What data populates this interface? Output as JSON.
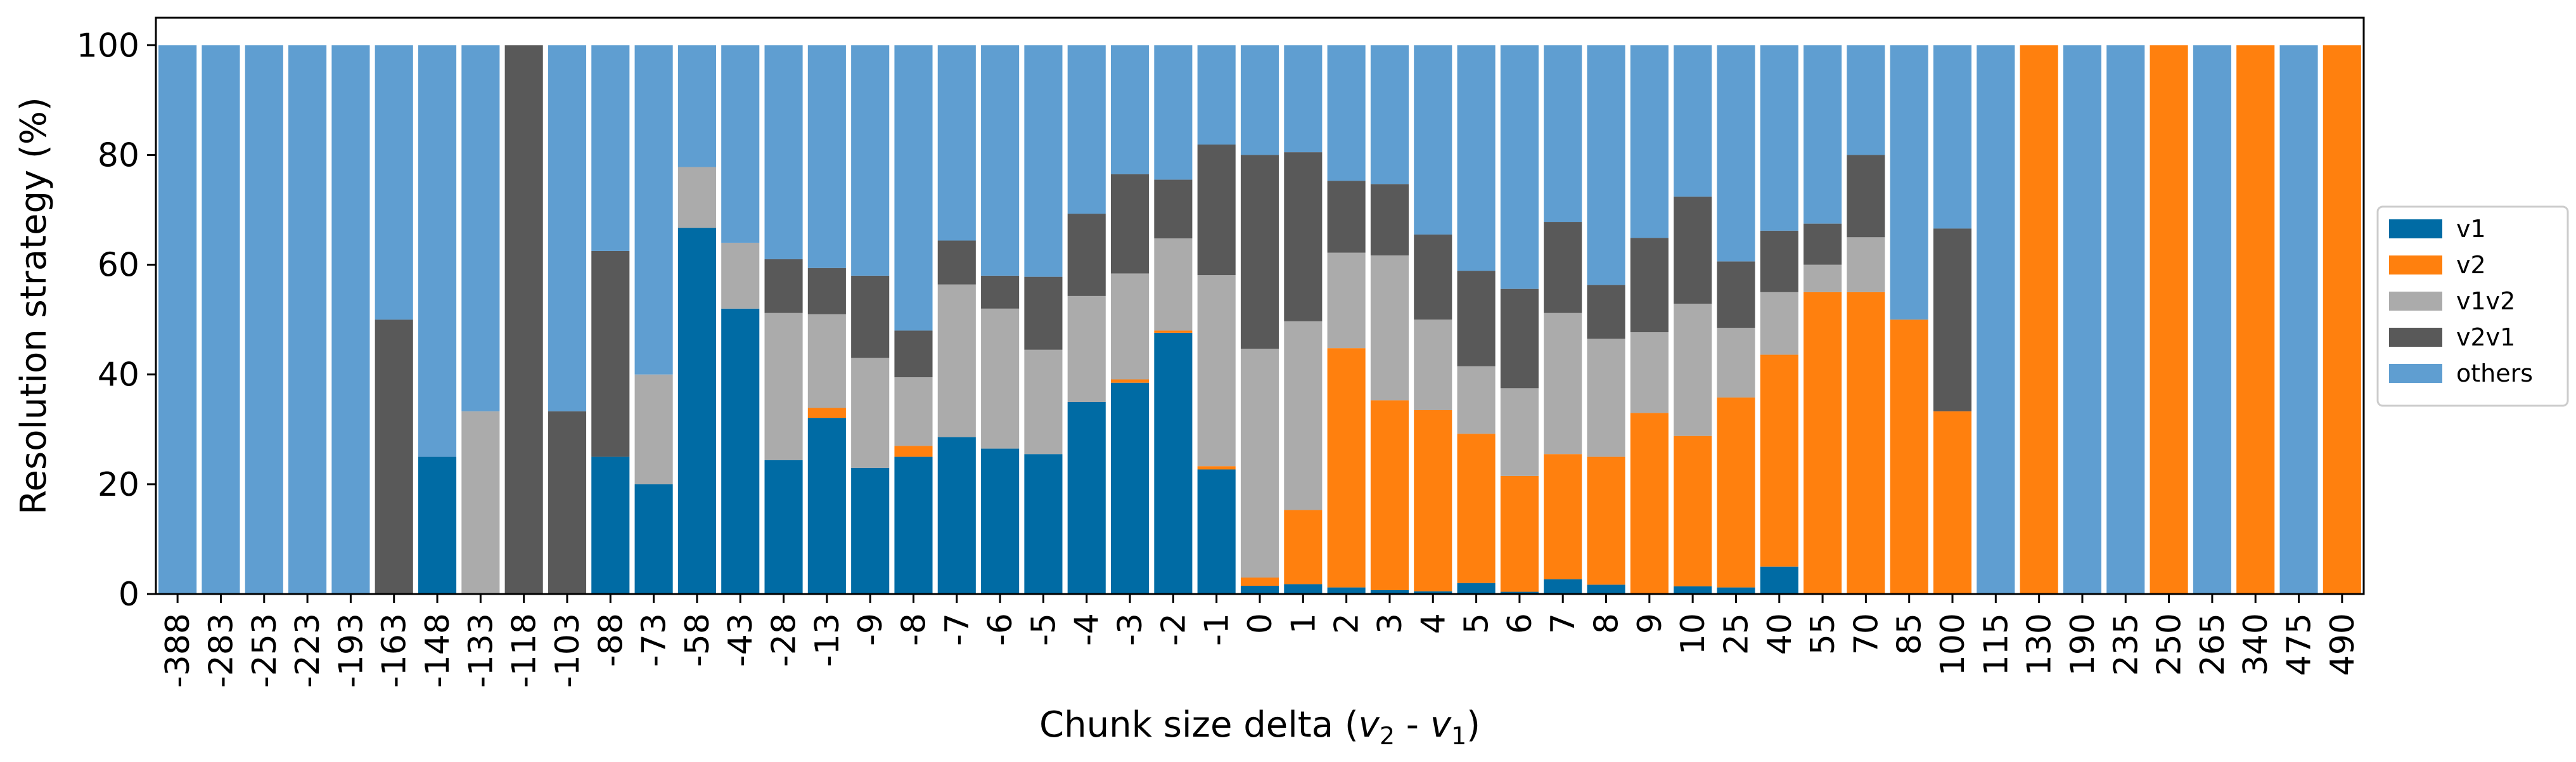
{
  "chart_data": {
    "type": "bar",
    "stacked": true,
    "title": "",
    "xlabel": "Chunk size delta (v₂ - v₁)",
    "xlabel_parts": [
      "Chunk size delta (",
      "v",
      "2",
      " - ",
      "v",
      "1",
      ")"
    ],
    "ylabel": "Resolution strategy (%)",
    "ylim": [
      0,
      105
    ],
    "yticks": [
      0,
      20,
      40,
      60,
      80,
      100
    ],
    "grid": false,
    "legend_position": "right",
    "categories": [
      "-388",
      "-283",
      "-253",
      "-223",
      "-193",
      "-163",
      "-148",
      "-133",
      "-118",
      "-103",
      "-88",
      "-73",
      "-58",
      "-43",
      "-28",
      "-13",
      "-9",
      "-8",
      "-7",
      "-6",
      "-5",
      "-4",
      "-3",
      "-2",
      "-1",
      "0",
      "1",
      "2",
      "3",
      "4",
      "5",
      "6",
      "7",
      "8",
      "9",
      "10",
      "25",
      "40",
      "55",
      "70",
      "85",
      "100",
      "115",
      "130",
      "190",
      "235",
      "250",
      "265",
      "340",
      "475",
      "490"
    ],
    "series": [
      {
        "name": "v1",
        "color": "#006ba4",
        "values": [
          0,
          0,
          0,
          0,
          0,
          0,
          25,
          0,
          0,
          0,
          25,
          20,
          66.7,
          52,
          24.4,
          32.1,
          23,
          25,
          28.6,
          26.5,
          25.5,
          35,
          38.5,
          47.6,
          22.7,
          1.5,
          1.8,
          1.2,
          0.7,
          0.5,
          2,
          0.4,
          2.7,
          1.7,
          0,
          1.4,
          1.2,
          5,
          0,
          0,
          0,
          0,
          0,
          0,
          0,
          0,
          0,
          0,
          0,
          0,
          0
        ]
      },
      {
        "name": "v2",
        "color": "#ff800e",
        "values": [
          0,
          0,
          0,
          0,
          0,
          0,
          0,
          0,
          0,
          0,
          0,
          0,
          0,
          0,
          0,
          1.8,
          0,
          2,
          0,
          0,
          0,
          0,
          0.6,
          0.4,
          0.6,
          1.5,
          13.5,
          43.6,
          34.6,
          33,
          27.2,
          21.1,
          22.8,
          23.3,
          33,
          27.4,
          34.6,
          38.6,
          55,
          55,
          50,
          33.3,
          0,
          100,
          0,
          0,
          100,
          0,
          100,
          0,
          100
        ]
      },
      {
        "name": "v1v2",
        "color": "#ababab",
        "values": [
          0,
          0,
          0,
          0,
          0,
          0,
          0,
          33.3,
          0,
          0,
          0,
          20,
          11.1,
          12,
          26.8,
          17.1,
          20,
          12.5,
          27.8,
          25.5,
          19,
          19.3,
          19.3,
          16.8,
          34.8,
          41.7,
          34.4,
          17.4,
          26.4,
          16.5,
          12.3,
          16,
          25.7,
          21.5,
          14.7,
          24.1,
          12.7,
          11.4,
          5,
          10,
          0,
          0,
          0,
          0,
          0,
          0,
          0,
          0,
          0,
          0,
          0
        ]
      },
      {
        "name": "v2v1",
        "color": "#595959",
        "values": [
          0,
          0,
          0,
          0,
          0,
          50,
          0,
          0,
          100,
          33.3,
          37.5,
          0,
          0,
          0,
          9.8,
          8.4,
          15,
          8.5,
          8,
          6,
          13.3,
          15,
          18.1,
          10.7,
          23.8,
          35.3,
          30.8,
          13.1,
          13,
          15.5,
          17.4,
          18.1,
          16.6,
          9.8,
          17.2,
          19.5,
          12.1,
          11.2,
          7.5,
          15,
          0,
          33.3,
          0,
          0,
          0,
          0,
          0,
          0,
          0,
          0,
          0
        ]
      }
    ],
    "others": {
      "name": "others",
      "color": "#5f9ed1",
      "fill_to": 100
    }
  }
}
